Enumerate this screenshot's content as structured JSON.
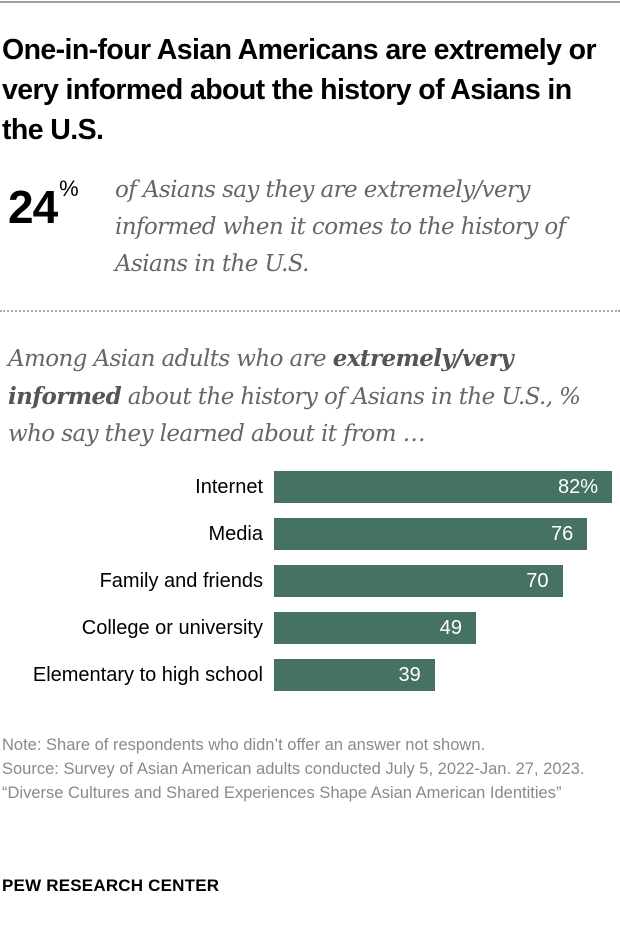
{
  "title": "One-in-four Asian Americans are extremely or very informed about the history of Asians in the U.S.",
  "stat": {
    "value": "24",
    "unit": "%",
    "description": "of Asians say they are extremely/very informed when it comes to the history of Asians in the U.S."
  },
  "subtitle": {
    "pre": "Among Asian adults who are ",
    "bold": "extremely/very informed",
    "post": " about the history of Asians in the U.S., % who say they learned about it from …"
  },
  "chart_data": {
    "type": "bar",
    "orientation": "horizontal",
    "categories": [
      "Internet",
      "Media",
      "Family and friends",
      "College or university",
      "Elementary to high school"
    ],
    "values": [
      82,
      76,
      70,
      49,
      39
    ],
    "data_labels": [
      "82%",
      "76",
      "70",
      "49",
      "39"
    ],
    "xlim": [
      0,
      82
    ],
    "grid": false,
    "bar_color": "#467263"
  },
  "notes": [
    "Note: Share of respondents who didn’t offer an answer not shown.",
    "Source: Survey of Asian American adults conducted July 5, 2022-Jan. 27, 2023.",
    "“Diverse Cultures and Shared Experiences Shape Asian American Identities”"
  ],
  "brand": "PEW RESEARCH CENTER"
}
